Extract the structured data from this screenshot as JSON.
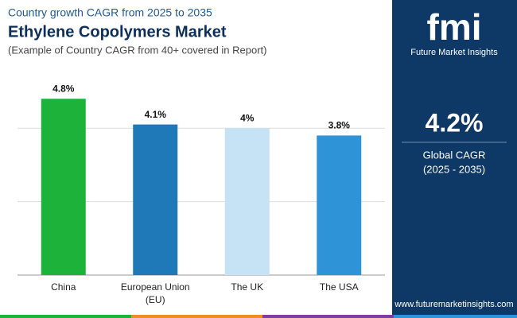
{
  "chart_data": {
    "type": "bar",
    "title": "Country growth CAGR from 2025 to 2035",
    "subtitle": "Ethylene Copolymers Market",
    "note": "(Example of Country CAGR from 40+ covered in Report)",
    "categories": [
      "China",
      "European Union (EU)",
      "The UK",
      "The USA"
    ],
    "values": [
      4.8,
      4.1,
      4,
      3.8
    ],
    "value_labels": [
      "4.8%",
      "4.1%",
      "4%",
      "3.8%"
    ],
    "colors": [
      "#1db33a",
      "#1f78b8",
      "#c6e3f5",
      "#2f93d8"
    ],
    "ylim": [
      0,
      5
    ],
    "grid_lines": [
      0,
      2,
      4
    ]
  },
  "panel": {
    "logo": "fmi",
    "brand": "Future Market Insights",
    "highlight": "4.2%",
    "highlight_label": "Global CAGR",
    "period": "(2025 - 2035)",
    "website": "www.futuremarketinsights.com"
  }
}
